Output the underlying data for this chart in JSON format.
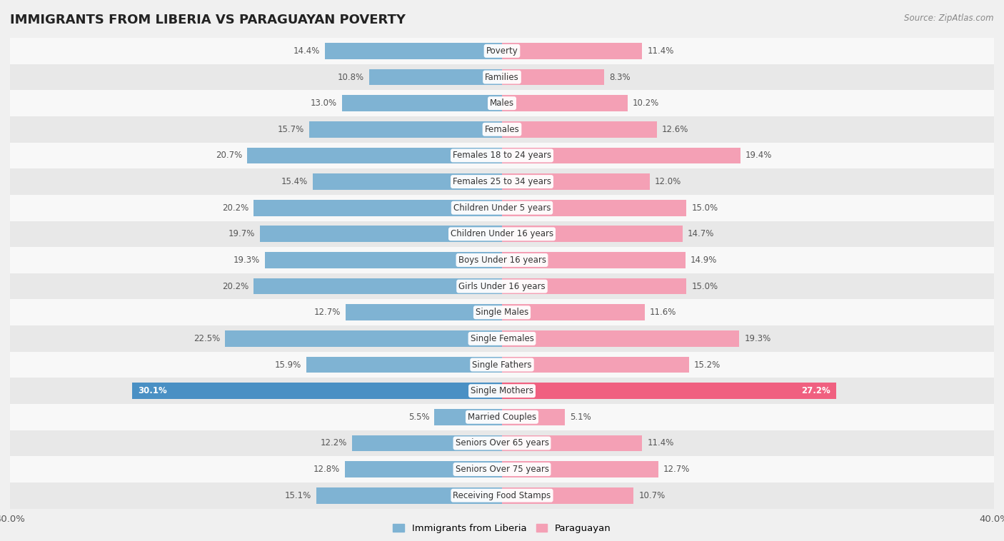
{
  "title": "IMMIGRANTS FROM LIBERIA VS PARAGUAYAN POVERTY",
  "source": "Source: ZipAtlas.com",
  "categories": [
    "Poverty",
    "Families",
    "Males",
    "Females",
    "Females 18 to 24 years",
    "Females 25 to 34 years",
    "Children Under 5 years",
    "Children Under 16 years",
    "Boys Under 16 years",
    "Girls Under 16 years",
    "Single Males",
    "Single Females",
    "Single Fathers",
    "Single Mothers",
    "Married Couples",
    "Seniors Over 65 years",
    "Seniors Over 75 years",
    "Receiving Food Stamps"
  ],
  "liberia_values": [
    14.4,
    10.8,
    13.0,
    15.7,
    20.7,
    15.4,
    20.2,
    19.7,
    19.3,
    20.2,
    12.7,
    22.5,
    15.9,
    30.1,
    5.5,
    12.2,
    12.8,
    15.1
  ],
  "paraguayan_values": [
    11.4,
    8.3,
    10.2,
    12.6,
    19.4,
    12.0,
    15.0,
    14.7,
    14.9,
    15.0,
    11.6,
    19.3,
    15.2,
    27.2,
    5.1,
    11.4,
    12.7,
    10.7
  ],
  "liberia_color": "#7fb3d3",
  "paraguayan_color": "#f4a0b5",
  "liberia_highlight_color": "#4a90c4",
  "paraguayan_highlight_color": "#f06080",
  "highlight_row": 13,
  "background_color": "#f0f0f0",
  "row_bg_light": "#f8f8f8",
  "row_bg_dark": "#e8e8e8",
  "axis_max": 40.0,
  "bar_height": 0.62,
  "title_fontsize": 13,
  "label_fontsize": 8.5,
  "value_fontsize": 8.5,
  "legend_label_liberia": "Immigrants from Liberia",
  "legend_label_paraguayan": "Paraguayan"
}
